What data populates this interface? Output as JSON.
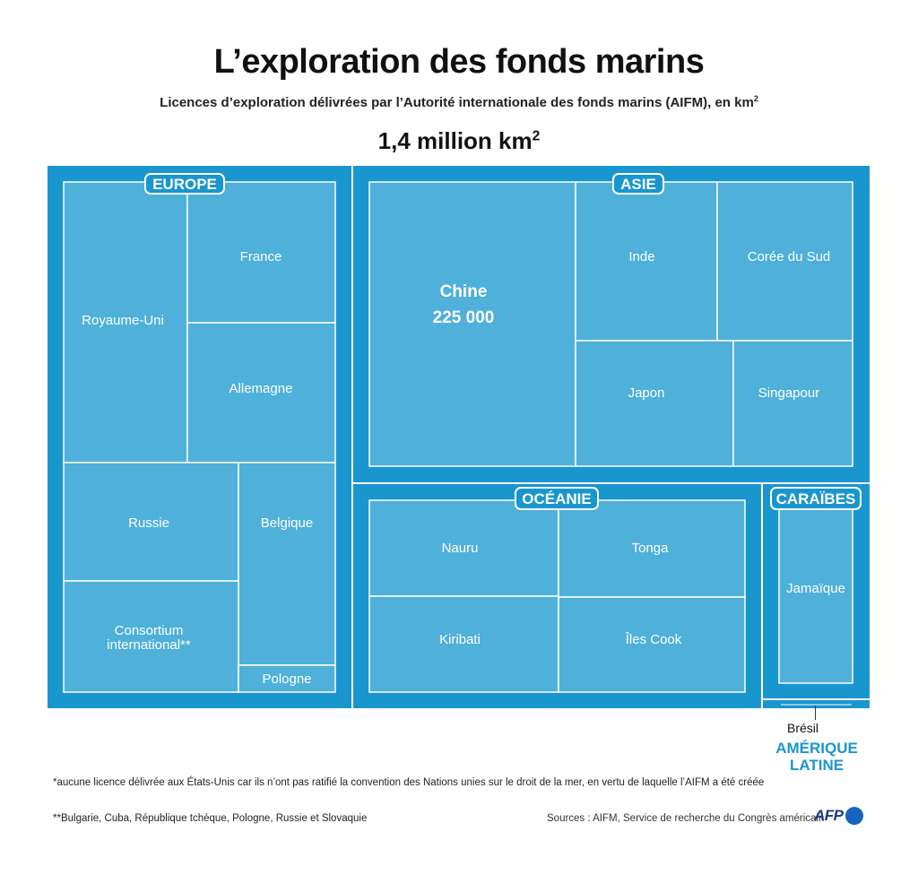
{
  "title": "L’exploration des fonds marins",
  "subtitle": "Licences d’exploration délivrées par l’Autorité internationale des fonds marins (AIFM), en km",
  "subtitle_sup": "2",
  "total": "1,4 million km",
  "total_sup": "2",
  "chart_data": {
    "type": "treemap",
    "unit": "km²",
    "total": "1,4 million km²",
    "groups": [
      {
        "name": "EUROPE",
        "items": [
          {
            "name": "Royaume-Uni"
          },
          {
            "name": "France"
          },
          {
            "name": "Allemagne"
          },
          {
            "name": "Russie"
          },
          {
            "name": "Belgique"
          },
          {
            "name": "Consortium international**"
          },
          {
            "name": "Pologne"
          }
        ]
      },
      {
        "name": "ASIE",
        "items": [
          {
            "name": "Chine",
            "value": "225 000"
          },
          {
            "name": "Inde"
          },
          {
            "name": "Corée du Sud"
          },
          {
            "name": "Japon"
          },
          {
            "name": "Singapour"
          }
        ]
      },
      {
        "name": "OCÉANIE",
        "items": [
          {
            "name": "Nauru"
          },
          {
            "name": "Tonga"
          },
          {
            "name": "Kiribati"
          },
          {
            "name": "Îles Cook"
          }
        ]
      },
      {
        "name": "CARAÏBES",
        "items": [
          {
            "name": "Jamaïque"
          }
        ]
      },
      {
        "name": "AMÉRIQUE LATINE",
        "items": [
          {
            "name": "Brésil"
          }
        ]
      }
    ]
  },
  "colors": {
    "outer": "#1a96cf",
    "cell": "#4fb0d9",
    "line": "#ffffff",
    "accent": "#1a96cf"
  },
  "bresil_label": "Brésil",
  "amerique_latine": [
    "AMÉRIQUE",
    "LATINE"
  ],
  "note_1": "*aucune licence délivrée aux États-Unis car ils n’ont pas ratifié la convention des Nations unies sur le droit de la mer, en vertu de laquelle l’AIFM a été créée",
  "note_2": "**Bulgarie, Cuba, République tchèque, Pologne, Russie et Slovaquie",
  "sources": "Sources : AIFM, Service de recherche du Congrès américain",
  "logo": "AFP"
}
